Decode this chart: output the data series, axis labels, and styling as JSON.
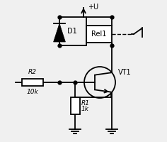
{
  "bg_color": "#f0f0f0",
  "line_color": "#000000",
  "lw": 1.3,
  "plus_u_label": "+U",
  "d1_label": "D1",
  "rel1_label": "Rel1",
  "vt1_label": "VT1",
  "r2_label": "R2",
  "r2_val": "10k",
  "r1_label": "R1",
  "r1_val": "1k"
}
